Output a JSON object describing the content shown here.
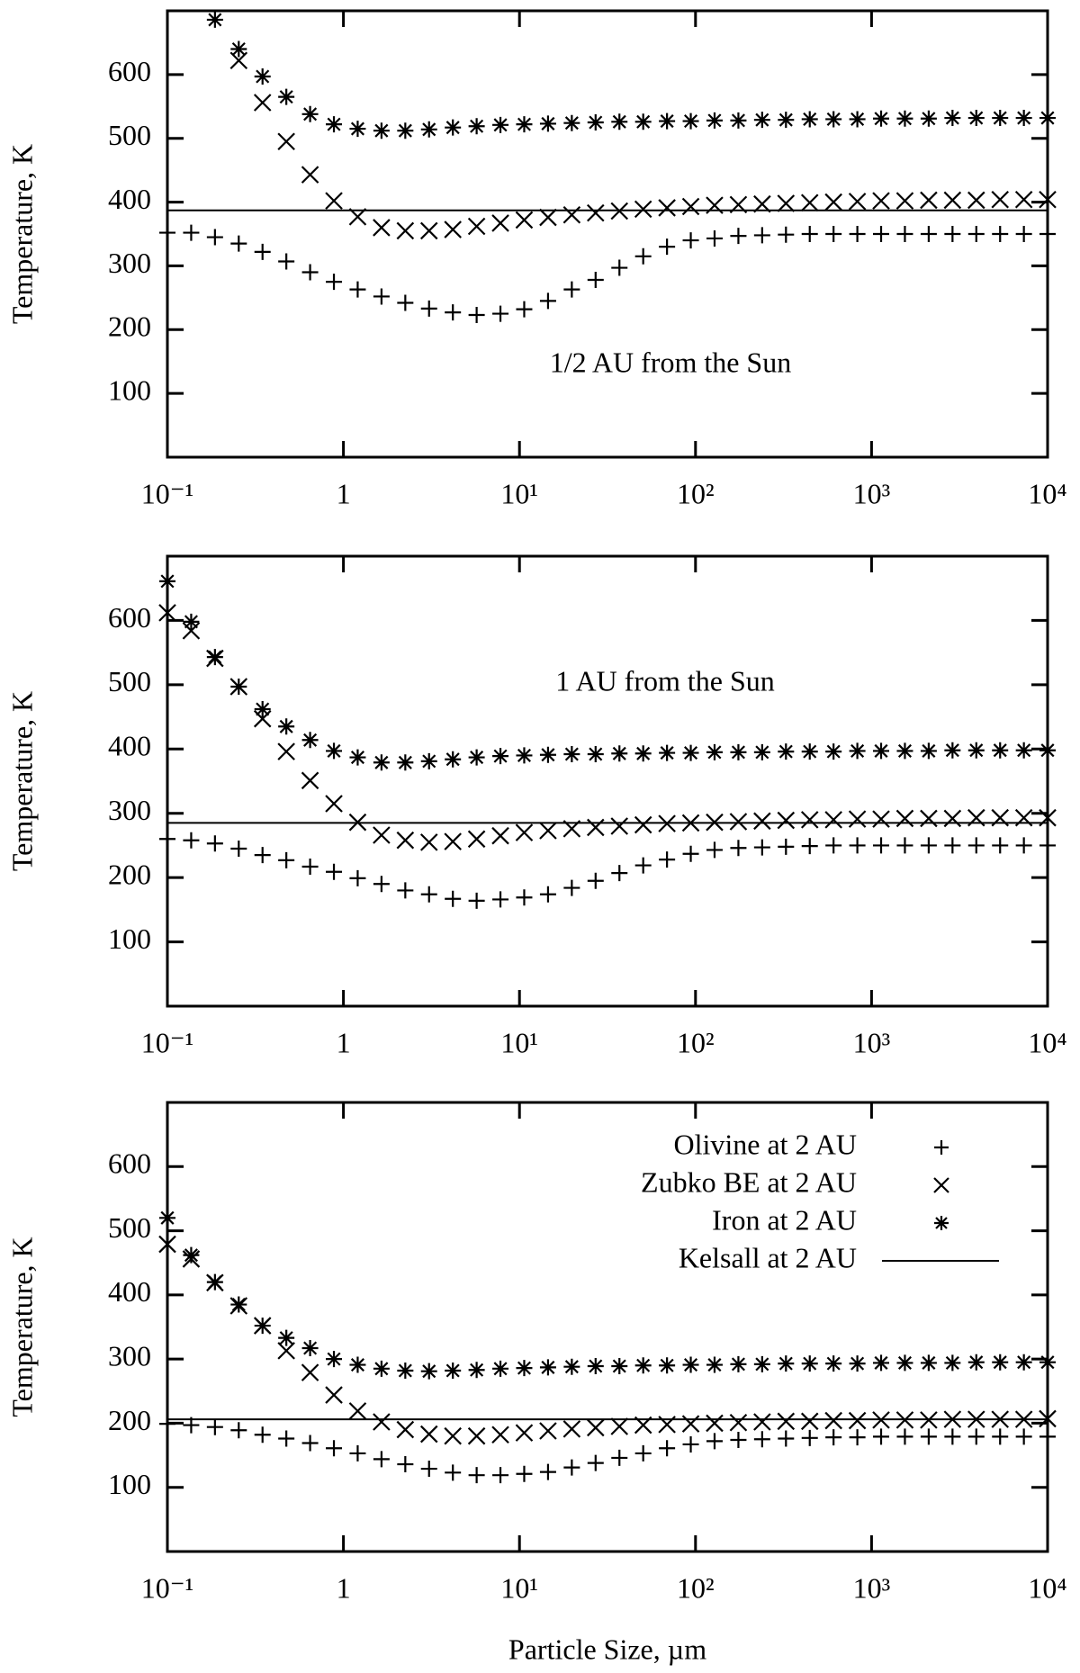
{
  "chart_data": [
    {
      "type": "scatter",
      "ylabel": "Temperature, K",
      "annotation": "1/2 AU from the Sun",
      "xscale": "log",
      "x": [
        0.1,
        0.1365,
        0.1863,
        0.2543,
        0.3471,
        0.4738,
        0.6467,
        0.883,
        1.205,
        1.645,
        2.246,
        3.065,
        4.184,
        5.711,
        7.796,
        10.64,
        14.53,
        19.83,
        27.07,
        36.96,
        50.45,
        68.87,
        94.0,
        128.3,
        175.2,
        239.1,
        326.4,
        445.6,
        608.3,
        830.4,
        1133,
        1547,
        2112,
        2883,
        3936,
        5373,
        7334,
        10000
      ],
      "xlim": [
        0.1,
        10000
      ],
      "xticks": [
        {
          "value": 0.1,
          "label": "10⁻¹"
        },
        1,
        {
          "value": 10,
          "label": "10¹"
        },
        {
          "value": 100,
          "label": "10²"
        },
        {
          "value": 1000,
          "label": "10³"
        },
        {
          "value": 10000,
          "label": "10⁴"
        }
      ],
      "ylim": [
        0,
        700
      ],
      "yticks": [
        100,
        200,
        300,
        400,
        500,
        600
      ],
      "series": [
        {
          "marker": "+",
          "color": "#000000",
          "values": [
            352,
            352,
            345,
            335,
            322,
            307,
            290,
            275,
            263,
            252,
            242,
            233,
            227,
            223,
            225,
            232,
            245,
            263,
            278,
            297,
            315,
            330,
            340,
            343,
            347,
            348,
            349,
            350,
            350,
            350,
            350,
            350,
            350,
            350,
            350,
            350,
            350,
            350
          ]
        },
        {
          "marker": "x",
          "color": "#000000",
          "values": [
            null,
            null,
            null,
            622,
            556,
            495,
            443,
            402,
            377,
            360,
            355,
            355,
            357,
            362,
            367,
            372,
            376,
            380,
            383,
            386,
            389,
            391,
            393,
            395,
            396,
            397,
            398,
            399,
            400,
            401,
            402,
            402,
            403,
            403,
            403,
            404,
            404,
            404
          ]
        },
        {
          "marker": "*",
          "color": "#000000",
          "values": [
            null,
            null,
            686,
            640,
            597,
            565,
            538,
            522,
            515,
            512,
            512,
            514,
            517,
            519,
            521,
            522,
            523,
            524,
            525,
            526,
            526,
            527,
            527,
            528,
            528,
            529,
            529,
            530,
            530,
            530,
            531,
            531,
            531,
            532,
            532,
            532,
            532,
            532
          ]
        },
        {
          "marker": "line",
          "color": "#000000",
          "level": 387
        }
      ]
    },
    {
      "type": "scatter",
      "ylabel": "Temperature, K",
      "annotation": "1 AU from the Sun",
      "xscale": "log",
      "x": [
        0.1,
        0.1365,
        0.1863,
        0.2543,
        0.3471,
        0.4738,
        0.6467,
        0.883,
        1.205,
        1.645,
        2.246,
        3.065,
        4.184,
        5.711,
        7.796,
        10.64,
        14.53,
        19.83,
        27.07,
        36.96,
        50.45,
        68.87,
        94.0,
        128.3,
        175.2,
        239.1,
        326.4,
        445.6,
        608.3,
        830.4,
        1133,
        1547,
        2112,
        2883,
        3936,
        5373,
        7334,
        10000
      ],
      "xlim": [
        0.1,
        10000
      ],
      "xticks": [
        {
          "value": 0.1,
          "label": "10⁻¹"
        },
        1,
        {
          "value": 10,
          "label": "10¹"
        },
        {
          "value": 100,
          "label": "10²"
        },
        {
          "value": 1000,
          "label": "10³"
        },
        {
          "value": 10000,
          "label": "10⁴"
        }
      ],
      "ylim": [
        0,
        700
      ],
      "yticks": [
        100,
        200,
        300,
        400,
        500,
        600
      ],
      "series": [
        {
          "marker": "+",
          "color": "#000000",
          "values": [
            260,
            258,
            253,
            245,
            235,
            227,
            217,
            209,
            199,
            190,
            180,
            174,
            167,
            164,
            166,
            169,
            174,
            184,
            195,
            207,
            219,
            228,
            237,
            243,
            246,
            247,
            248,
            249,
            250,
            250,
            250,
            250,
            250,
            250,
            250,
            250,
            250,
            250
          ]
        },
        {
          "marker": "x",
          "color": "#000000",
          "values": [
            612,
            584,
            541,
            497,
            447,
            396,
            351,
            315,
            286,
            266,
            258,
            255,
            256,
            260,
            265,
            270,
            273,
            276,
            278,
            280,
            282,
            284,
            285,
            286,
            287,
            288,
            289,
            290,
            290,
            291,
            291,
            292,
            292,
            292,
            293,
            293,
            293,
            293
          ]
        },
        {
          "marker": "*",
          "color": "#000000",
          "values": [
            661,
            598,
            543,
            497,
            462,
            435,
            414,
            397,
            387,
            379,
            379,
            381,
            384,
            387,
            389,
            390,
            391,
            392,
            392,
            393,
            393,
            394,
            394,
            395,
            395,
            395,
            396,
            396,
            396,
            397,
            397,
            397,
            397,
            398,
            398,
            398,
            398,
            398
          ]
        },
        {
          "marker": "line",
          "color": "#000000",
          "level": 285
        }
      ]
    },
    {
      "type": "scatter",
      "ylabel": "Temperature, K",
      "xlabel": "Particle Size, µm",
      "xscale": "log",
      "legend": "upper right",
      "x": [
        0.1,
        0.1365,
        0.1863,
        0.2543,
        0.3471,
        0.4738,
        0.6467,
        0.883,
        1.205,
        1.645,
        2.246,
        3.065,
        4.184,
        5.711,
        7.796,
        10.64,
        14.53,
        19.83,
        27.07,
        36.96,
        50.45,
        68.87,
        94.0,
        128.3,
        175.2,
        239.1,
        326.4,
        445.6,
        608.3,
        830.4,
        1133,
        1547,
        2112,
        2883,
        3936,
        5373,
        7334,
        10000
      ],
      "xlim": [
        0.1,
        10000
      ],
      "xticks": [
        {
          "value": 0.1,
          "label": "10⁻¹"
        },
        1,
        {
          "value": 10,
          "label": "10¹"
        },
        {
          "value": 100,
          "label": "10²"
        },
        {
          "value": 1000,
          "label": "10³"
        },
        {
          "value": 10000,
          "label": "10⁴"
        }
      ],
      "ylim": [
        0,
        700
      ],
      "yticks": [
        100,
        200,
        300,
        400,
        500,
        600
      ],
      "series": [
        {
          "name": "Olivine at 2 AU",
          "marker": "+",
          "color": "#000000",
          "values": [
            199,
            197,
            194,
            189,
            182,
            176,
            169,
            161,
            153,
            144,
            136,
            129,
            123,
            119,
            119,
            121,
            124,
            131,
            138,
            146,
            153,
            161,
            167,
            172,
            174,
            175,
            176,
            177,
            178,
            178,
            179,
            179,
            179,
            179,
            179,
            179,
            179,
            179
          ]
        },
        {
          "name": "Zubko BE at 2 AU",
          "marker": "x",
          "color": "#000000",
          "values": [
            479,
            456,
            419,
            383,
            352,
            313,
            279,
            244,
            219,
            202,
            190,
            183,
            180,
            180,
            182,
            185,
            188,
            191,
            193,
            195,
            197,
            198,
            199,
            200,
            201,
            202,
            203,
            203,
            204,
            204,
            205,
            205,
            205,
            206,
            206,
            206,
            206,
            207
          ]
        },
        {
          "name": "Iron at 2 AU",
          "marker": "*",
          "color": "#000000",
          "values": [
            520,
            462,
            420,
            385,
            352,
            333,
            317,
            300,
            291,
            285,
            282,
            281,
            282,
            283,
            285,
            286,
            287,
            288,
            289,
            289,
            290,
            290,
            291,
            291,
            292,
            292,
            293,
            293,
            293,
            293,
            294,
            294,
            294,
            294,
            295,
            295,
            295,
            295
          ]
        },
        {
          "name": "Kelsall at 2 AU",
          "marker": "line",
          "color": "#000000",
          "level": 206
        }
      ]
    }
  ]
}
